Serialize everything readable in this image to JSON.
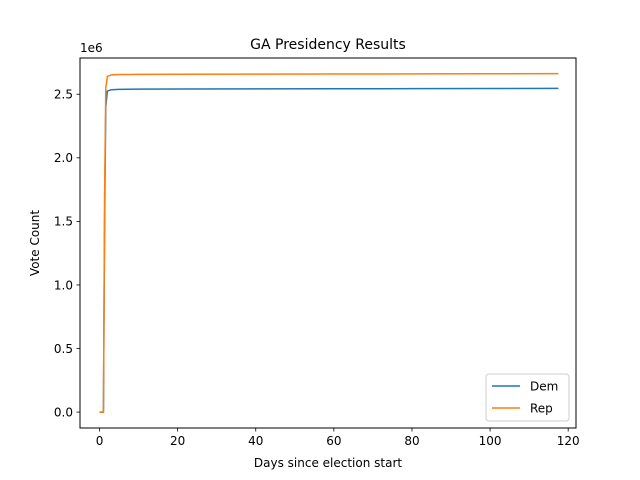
{
  "chart_data": {
    "type": "line",
    "title": "GA Presidency Results",
    "xlabel": "Days since election start",
    "ylabel": "Vote Count",
    "y_offset_label": "1e6",
    "xlim": [
      -5,
      122
    ],
    "ylim": [
      -125000,
      2785000
    ],
    "x_ticks": [
      0,
      20,
      40,
      60,
      80,
      100,
      120
    ],
    "y_ticks": [
      0,
      500000,
      1000000,
      1500000,
      2000000,
      2500000
    ],
    "y_tick_labels": [
      "0.0",
      "0.5",
      "1.0",
      "1.5",
      "2.0",
      "2.5"
    ],
    "legend_placement": "lower-right",
    "grid": false,
    "series": [
      {
        "name": "Dem",
        "color": "#1f77b4",
        "x": [
          0,
          1,
          1.3,
          1.6,
          2,
          3,
          5,
          10,
          20,
          40,
          60,
          80,
          100,
          117.5
        ],
        "y": [
          0,
          0,
          1500000,
          2400000,
          2525000,
          2535000,
          2538000,
          2540000,
          2541000,
          2542000,
          2543000,
          2544000,
          2545000,
          2546000
        ]
      },
      {
        "name": "Rep",
        "color": "#ff7f0e",
        "x": [
          0,
          1,
          1.3,
          1.6,
          2,
          3,
          5,
          10,
          20,
          40,
          60,
          80,
          100,
          117.5
        ],
        "y": [
          0,
          0,
          1700000,
          2550000,
          2640000,
          2652000,
          2655000,
          2656000,
          2657000,
          2658000,
          2659000,
          2660000,
          2661000,
          2662000
        ]
      }
    ]
  }
}
